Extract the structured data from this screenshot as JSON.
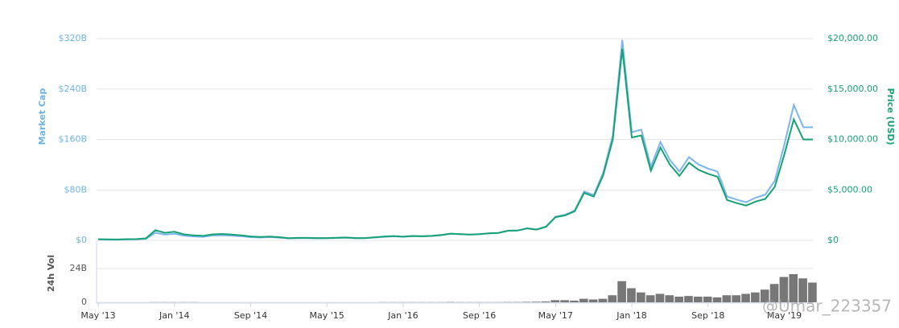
{
  "chart_data": [
    {
      "type": "line",
      "y_label": "Market Cap",
      "y2_label": "Price (USD)",
      "x": [
        "2013-05",
        "2013-06",
        "2013-07",
        "2013-08",
        "2013-09",
        "2013-10",
        "2013-11",
        "2013-12",
        "2014-01",
        "2014-02",
        "2014-03",
        "2014-04",
        "2014-05",
        "2014-06",
        "2014-07",
        "2014-08",
        "2014-09",
        "2014-10",
        "2014-11",
        "2014-12",
        "2015-01",
        "2015-02",
        "2015-03",
        "2015-04",
        "2015-05",
        "2015-06",
        "2015-07",
        "2015-08",
        "2015-09",
        "2015-10",
        "2015-11",
        "2015-12",
        "2016-01",
        "2016-02",
        "2016-03",
        "2016-04",
        "2016-05",
        "2016-06",
        "2016-07",
        "2016-08",
        "2016-09",
        "2016-10",
        "2016-11",
        "2016-12",
        "2017-01",
        "2017-02",
        "2017-03",
        "2017-04",
        "2017-05",
        "2017-06",
        "2017-07",
        "2017-08",
        "2017-09",
        "2017-10",
        "2017-11",
        "2017-12",
        "2018-01",
        "2018-02",
        "2018-03",
        "2018-04",
        "2018-05",
        "2018-06",
        "2018-07",
        "2018-08",
        "2018-09",
        "2018-10",
        "2018-11",
        "2018-12",
        "2019-01",
        "2019-02",
        "2019-03",
        "2019-04",
        "2019-05",
        "2019-06",
        "2019-07",
        "2019-08"
      ],
      "xlim": [
        "2013-05",
        "2019-08"
      ],
      "series": [
        {
          "color": "#7cb5ec",
          "axis": "y",
          "values": [
            1.4,
            1.1,
            1.0,
            1.4,
            1.6,
            2.4,
            12,
            9,
            10.4,
            7.4,
            6.2,
            5.6,
            7.6,
            8.2,
            7.5,
            6.5,
            5.1,
            4.5,
            5.1,
            4.3,
            3.0,
            3.5,
            3.5,
            3.2,
            3.3,
            3.7,
            4.1,
            3.3,
            3.4,
            4.5,
            5.6,
            6.4,
            5.6,
            6.7,
            6.3,
            6.9,
            8.2,
            10.5,
            9.7,
            9.1,
            9.7,
            11.1,
            11.8,
            15.4,
            15.6,
            19.2,
            17.4,
            22.0,
            37.6,
            40.7,
            47.4,
            77.6,
            71.9,
            107.5,
            166.8,
            318,
            171.6,
            175.6,
            116.8,
            156.0,
            127.5,
            109.4,
            132.0,
            120.3,
            113.9,
            109.0,
            69.7,
            64.6,
            60.5,
            67.7,
            72.5,
            94.2,
            151.6,
            214.7,
            179.2,
            179.5
          ]
        },
        {
          "color": "#17a177",
          "axis": "y2",
          "values": [
            120,
            100,
            90,
            120,
            130,
            200,
            1000,
            750,
            850,
            600,
            500,
            450,
            600,
            640,
            580,
            500,
            390,
            340,
            380,
            320,
            220,
            250,
            250,
            230,
            235,
            260,
            285,
            230,
            235,
            310,
            380,
            430,
            370,
            440,
            415,
            450,
            530,
            670,
            620,
            575,
            610,
            700,
            740,
            960,
            970,
            1190,
            1070,
            1350,
            2300,
            2480,
            2880,
            4700,
            4340,
            6470,
            10000,
            19000,
            10200,
            10400,
            6900,
            9200,
            7500,
            6400,
            7700,
            7000,
            6600,
            6300,
            4000,
            3700,
            3450,
            3850,
            4100,
            5300,
            8500,
            12000,
            10000,
            10000
          ]
        }
      ],
      "ylim": [
        0,
        320
      ],
      "yticks": [
        {
          "value": 0,
          "label": "$0"
        },
        {
          "value": 80,
          "label": "$80B"
        },
        {
          "value": 160,
          "label": "$160B"
        },
        {
          "value": 240,
          "label": "$240B"
        },
        {
          "value": 320,
          "label": "$320B"
        }
      ],
      "y2lim": [
        0,
        20000
      ],
      "y2ticks": [
        {
          "value": 0,
          "label": "$0"
        },
        {
          "value": 5000,
          "label": "$5,000.00"
        },
        {
          "value": 10000,
          "label": "$10,000.00"
        },
        {
          "value": 15000,
          "label": "$15,000.00"
        },
        {
          "value": 20000,
          "label": "$20,000.00"
        }
      ],
      "grid": true
    },
    {
      "type": "bar",
      "y_label": "24h Vol",
      "x": [
        "2013-05",
        "2013-06",
        "2013-07",
        "2013-08",
        "2013-09",
        "2013-10",
        "2013-11",
        "2013-12",
        "2014-01",
        "2014-02",
        "2014-03",
        "2014-04",
        "2014-05",
        "2014-06",
        "2014-07",
        "2014-08",
        "2014-09",
        "2014-10",
        "2014-11",
        "2014-12",
        "2015-01",
        "2015-02",
        "2015-03",
        "2015-04",
        "2015-05",
        "2015-06",
        "2015-07",
        "2015-08",
        "2015-09",
        "2015-10",
        "2015-11",
        "2015-12",
        "2016-01",
        "2016-02",
        "2016-03",
        "2016-04",
        "2016-05",
        "2016-06",
        "2016-07",
        "2016-08",
        "2016-09",
        "2016-10",
        "2016-11",
        "2016-12",
        "2017-01",
        "2017-02",
        "2017-03",
        "2017-04",
        "2017-05",
        "2017-06",
        "2017-07",
        "2017-08",
        "2017-09",
        "2017-10",
        "2017-11",
        "2017-12",
        "2018-01",
        "2018-02",
        "2018-03",
        "2018-04",
        "2018-05",
        "2018-06",
        "2018-07",
        "2018-08",
        "2018-09",
        "2018-10",
        "2018-11",
        "2018-12",
        "2019-01",
        "2019-02",
        "2019-03",
        "2019-04",
        "2019-05",
        "2019-06",
        "2019-07",
        "2019-08"
      ],
      "xlim": [
        "2013-05",
        "2019-08"
      ],
      "values": [
        0,
        0,
        0,
        0,
        0,
        0,
        0.1,
        0.1,
        0.1,
        0.1,
        0.1,
        0,
        0,
        0,
        0,
        0,
        0,
        0,
        0,
        0,
        0,
        0,
        0,
        0,
        0,
        0,
        0,
        0,
        0,
        0,
        0.1,
        0.1,
        0.1,
        0.1,
        0.1,
        0.1,
        0.1,
        0.2,
        0.1,
        0.1,
        0.1,
        0.1,
        0.1,
        0.2,
        0.2,
        0.3,
        0.4,
        0.6,
        1.5,
        1.5,
        1.2,
        2.5,
        2,
        2.5,
        5,
        15,
        10,
        7,
        5,
        6,
        5,
        4,
        4.5,
        4,
        4,
        3.5,
        5,
        5,
        6,
        7,
        9,
        13,
        18,
        20,
        17,
        14
      ],
      "color": "#777777",
      "ylim": [
        0,
        40
      ],
      "yticks": [
        0,
        {
          "value": 24,
          "label": "24B"
        }
      ],
      "xticks": [
        {
          "value": "2013-05",
          "label": "May '13"
        },
        {
          "value": "2014-01",
          "label": "Jan '14"
        },
        {
          "value": "2014-09",
          "label": "Sep '14"
        },
        {
          "value": "2015-05",
          "label": "May '15"
        },
        {
          "value": "2016-01",
          "label": "Jan '16"
        },
        {
          "value": "2016-09",
          "label": "Sep '16"
        },
        {
          "value": "2017-05",
          "label": "May '17"
        },
        {
          "value": "2018-01",
          "label": "Jan '18"
        },
        {
          "value": "2018-09",
          "label": "Sep '18"
        },
        {
          "value": "2019-05",
          "label": "May '19"
        }
      ],
      "grid": true,
      "watermark": "@Umar_223357"
    }
  ]
}
